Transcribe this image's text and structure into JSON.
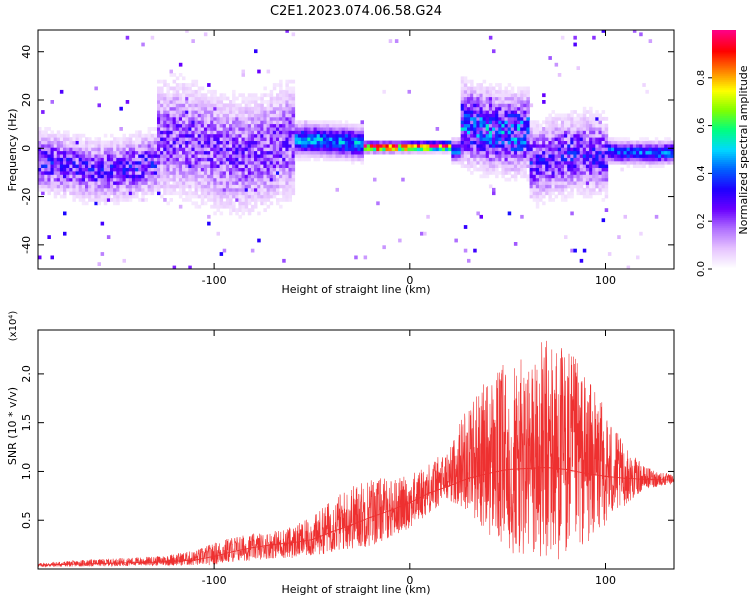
{
  "title": "C2E1.2023.074.06.58.G24",
  "chart_data": [
    {
      "type": "heatmap",
      "title": "C2E1.2023.074.06.58.G24",
      "xlabel": "Height of straight line (km)",
      "ylabel": "Frequency (Hz)",
      "xlim": [
        -190,
        135
      ],
      "ylim": [
        -50,
        49
      ],
      "x_ticks": [
        -100,
        0,
        100
      ],
      "x_tick_labels": [
        "-100",
        "0",
        "100"
      ],
      "y_ticks": [
        -40,
        -20,
        0,
        20,
        40
      ],
      "y_tick_labels": [
        "-40",
        "-20",
        "0",
        "20",
        "40"
      ],
      "grid": false,
      "colorbar": {
        "label": "Normalized spectral amplitude",
        "range": [
          0.0,
          1.0
        ],
        "ticks": [
          0.0,
          0.2,
          0.4,
          0.6,
          0.8
        ],
        "tick_labels": [
          "0.0",
          "0.2",
          "0.4",
          "0.6",
          "0.8"
        ],
        "colormap": [
          "#ffffff",
          "#e6c3ff",
          "#b070ff",
          "#6a00ff",
          "#1e00ff",
          "#0060ff",
          "#00d8ff",
          "#00ff80",
          "#80ff00",
          "#ffff00",
          "#ff8000",
          "#ff0000",
          "#ff0080"
        ]
      },
      "features": [
        {
          "x_range": [
            -190,
            -130
          ],
          "freq_center": -8,
          "freq_spread": 6,
          "amplitude": 0.25
        },
        {
          "x_range": [
            -130,
            -60
          ],
          "freq_center": 0,
          "freq_spread": 12,
          "amplitude": 0.2
        },
        {
          "x_range": [
            -60,
            -25
          ],
          "freq_center": 2,
          "freq_spread": 3,
          "amplitude": 0.45
        },
        {
          "x_range": [
            -25,
            20
          ],
          "freq_center": 0,
          "freq_spread": 0.6,
          "amplitude": 0.95
        },
        {
          "x_range": [
            25,
            60
          ],
          "freq_center": 8,
          "freq_spread": 8,
          "amplitude": 0.35
        },
        {
          "x_range": [
            60,
            100
          ],
          "freq_center": -5,
          "freq_spread": 8,
          "amplitude": 0.25
        },
        {
          "x_range": [
            100,
            135
          ],
          "freq_center": -2,
          "freq_spread": 2,
          "amplitude": 0.4
        }
      ]
    },
    {
      "type": "line",
      "xlabel": "Height of straight line (km)",
      "ylabel": "SNR (10 * v/v)",
      "y_multiplier": "(x10⁴)",
      "xlim": [
        -190,
        135
      ],
      "ylim": [
        0,
        24500
      ],
      "x_ticks": [
        -100,
        0,
        100
      ],
      "x_tick_labels": [
        "-100",
        "0",
        "100"
      ],
      "y_ticks": [
        5000,
        10000,
        15000,
        20000
      ],
      "y_tick_labels": [
        "0.5",
        "1.0",
        "1.5",
        "2.0"
      ],
      "grid": false,
      "color": "#ee3030",
      "x": [
        -190,
        -170,
        -150,
        -130,
        -110,
        -100,
        -90,
        -80,
        -70,
        -60,
        -50,
        -40,
        -30,
        -20,
        -10,
        0,
        10,
        20,
        30,
        40,
        50,
        60,
        70,
        80,
        90,
        100,
        110,
        120,
        135
      ],
      "y": [
        400,
        500,
        600,
        700,
        900,
        1300,
        1800,
        2200,
        2500,
        2700,
        3000,
        3800,
        4500,
        5300,
        6000,
        6800,
        7800,
        8500,
        9300,
        9800,
        10200,
        10300,
        10400,
        10200,
        9800,
        9500,
        9300,
        9200,
        9100
      ],
      "envelope_top": [
        600,
        900,
        1100,
        1300,
        1900,
        2700,
        3400,
        3600,
        3900,
        4400,
        5300,
        7200,
        8600,
        9500,
        9300,
        9600,
        11000,
        12200,
        17500,
        19500,
        21500,
        21500,
        24000,
        23000,
        20000,
        16500,
        12500,
        10500,
        9600
      ],
      "envelope_bottom": [
        200,
        250,
        300,
        350,
        350,
        400,
        700,
        900,
        1100,
        1100,
        1300,
        1700,
        2000,
        2300,
        3200,
        4200,
        5700,
        7000,
        6000,
        3500,
        1500,
        800,
        500,
        1200,
        2500,
        4500,
        6500,
        8200,
        8700
      ]
    }
  ]
}
